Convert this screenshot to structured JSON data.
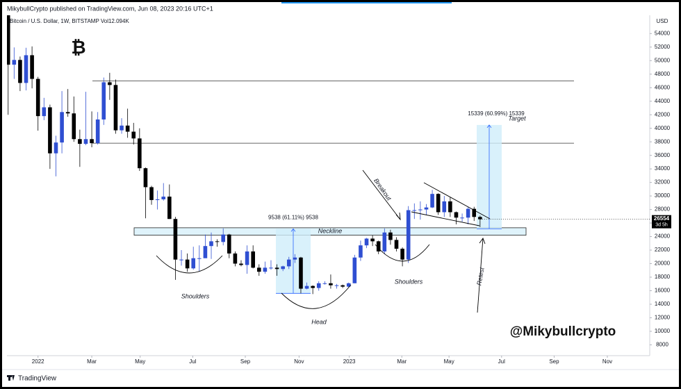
{
  "header": "MikybullCrypto published on TradingView.com, Jun 08, 2023 20:16 UTC+1",
  "footer": "TradingView",
  "chart_data": {
    "type": "candlestick",
    "title": "Bitcoin / U.S. Dollar, 1W, BITSTAMP  Vol12.094K",
    "y_unit": "USD",
    "up_color": "#2f4fd2",
    "down_color": "#000000",
    "x": [
      -5,
      -4,
      -3,
      -2,
      -1,
      0,
      1,
      2,
      3,
      4,
      5,
      6,
      7,
      8,
      9,
      10,
      11,
      12,
      13,
      14,
      15,
      16,
      17,
      18,
      19,
      20,
      21,
      22,
      23,
      24,
      25,
      26,
      27,
      28,
      29,
      30,
      31,
      32,
      33,
      34,
      35,
      36,
      37,
      38,
      39,
      40,
      41,
      42,
      43,
      44,
      45,
      46,
      47,
      48,
      49,
      50,
      51,
      52,
      53,
      54,
      55,
      56,
      57,
      58,
      59,
      60,
      61,
      62,
      63,
      64,
      65,
      66,
      67,
      68,
      69,
      70,
      71,
      72,
      73,
      74
    ],
    "open": [
      57300,
      49400,
      50100,
      46700,
      50800,
      47300,
      41800,
      43100,
      36300,
      37900,
      42400,
      42200,
      38400,
      37700,
      38400,
      37800,
      41300,
      46800,
      46400,
      39700,
      40400,
      39500,
      38500,
      34100,
      31300,
      29400,
      29500,
      29900,
      26600,
      20600,
      20600,
      19300,
      20800,
      20800,
      22600,
      23300,
      23200,
      24300,
      21500,
      20000,
      19800,
      21800,
      19400,
      18800,
      19400,
      19400,
      19200,
      19600,
      20600,
      20900,
      16300,
      16700,
      16400,
      17100,
      17100,
      16800,
      16800,
      16600,
      17100,
      20900,
      22700,
      23700,
      23300,
      21800,
      24600,
      23500,
      22200,
      20600,
      27900,
      27900,
      28000,
      28300,
      30300,
      27600,
      29200,
      27600,
      26800,
      26800,
      28100,
      26900
    ],
    "high": [
      59000,
      51950,
      50600,
      51900,
      52100,
      47600,
      44500,
      43500,
      38900,
      45500,
      45800,
      44700,
      39800,
      45400,
      42500,
      42400,
      47500,
      48200,
      47200,
      41500,
      42900,
      40800,
      40000,
      34200,
      31500,
      30800,
      31900,
      31700,
      26900,
      22000,
      21500,
      22500,
      22700,
      24300,
      24600,
      23600,
      25200,
      24400,
      21800,
      20500,
      22700,
      22700,
      19900,
      20300,
      20500,
      19900,
      19700,
      21000,
      21400,
      21000,
      17200,
      16800,
      17400,
      17400,
      18400,
      17000,
      16900,
      17200,
      21300,
      23400,
      23800,
      24200,
      23400,
      25200,
      25000,
      23900,
      22400,
      28500,
      28900,
      29200,
      28800,
      30900,
      30400,
      30000,
      29800,
      27700,
      27400,
      28400,
      28400,
      27100
    ],
    "low": [
      42000,
      47300,
      45500,
      45600,
      45900,
      39650,
      41200,
      34000,
      32900,
      36300,
      41700,
      38000,
      34300,
      37500,
      37200,
      37600,
      40500,
      44200,
      39200,
      39200,
      38600,
      37600,
      33700,
      26700,
      28700,
      28000,
      29300,
      26600,
      17600,
      19700,
      18800,
      19100,
      18900,
      21000,
      20700,
      22500,
      22700,
      20800,
      19600,
      19600,
      18500,
      19300,
      18200,
      18500,
      19100,
      18200,
      18900,
      19200,
      20100,
      15600,
      16200,
      15500,
      16000,
      16900,
      16300,
      16300,
      16400,
      16500,
      17100,
      20400,
      22300,
      22600,
      21400,
      21400,
      22800,
      21800,
      19600,
      20100,
      26600,
      26500,
      27200,
      28200,
      27200,
      26900,
      26900,
      25800,
      26200,
      25800,
      26300,
      25400
    ],
    "close": [
      49400,
      50100,
      46700,
      50800,
      47300,
      41800,
      43100,
      36300,
      37900,
      42400,
      42200,
      38400,
      37700,
      38400,
      37800,
      41300,
      46800,
      46400,
      39700,
      40400,
      39500,
      38500,
      34100,
      31300,
      29400,
      29500,
      29900,
      26600,
      20600,
      20600,
      19300,
      20800,
      20800,
      22600,
      23300,
      23200,
      24300,
      21500,
      20000,
      19800,
      21800,
      19400,
      18800,
      19400,
      19400,
      19200,
      19600,
      20600,
      20900,
      16300,
      16700,
      16400,
      17100,
      17100,
      16800,
      16800,
      16600,
      17100,
      20900,
      22700,
      23700,
      23300,
      21800,
      24600,
      23500,
      22200,
      20600,
      27900,
      27900,
      28000,
      28300,
      30300,
      27600,
      29200,
      27600,
      26800,
      26800,
      28100,
      26900,
      26554
    ],
    "xlim": [
      -5.2,
      102.4
    ],
    "xticks": [
      {
        "value": 0,
        "label": "2022"
      },
      {
        "value": 9,
        "label": "Mar"
      },
      {
        "value": 17.1,
        "label": "May"
      },
      {
        "value": 25.9,
        "label": "Jul"
      },
      {
        "value": 34.7,
        "label": "Sep"
      },
      {
        "value": 43.7,
        "label": "Nov"
      },
      {
        "value": 52.1,
        "label": "2023"
      },
      {
        "value": 60.9,
        "label": "Mar"
      },
      {
        "value": 68.8,
        "label": "May"
      },
      {
        "value": 77.6,
        "label": "Jul"
      },
      {
        "value": 86.4,
        "label": "Sep"
      },
      {
        "value": 95.3,
        "label": "Nov"
      }
    ],
    "ylim": [
      6400,
      56700
    ],
    "yticks": [
      8000,
      10000,
      12000,
      14000,
      16000,
      18000,
      20000,
      22000,
      24000,
      26000,
      28000,
      30000,
      32000,
      34000,
      36000,
      38000,
      40000,
      42000,
      44000,
      46000,
      48000,
      50000,
      52000,
      54000
    ],
    "last_price": 26554,
    "countdown": "3d 5h",
    "resistance_lines": [
      47000,
      37800
    ],
    "neckline": {
      "label": "Neckline",
      "low": 24200,
      "high": 25300
    },
    "measures": [
      {
        "label": "9538 (61.11%) 9538",
        "from": 15608,
        "to": 25146
      },
      {
        "label": "15339 (60.99%) 15339",
        "from": 25150,
        "to": 40489
      }
    ],
    "annotations": [
      "Shoulders",
      "Shoulders",
      "Head",
      "Breakout",
      "Retest",
      "Target",
      "@Mikybullcrypto",
      "₿"
    ]
  }
}
